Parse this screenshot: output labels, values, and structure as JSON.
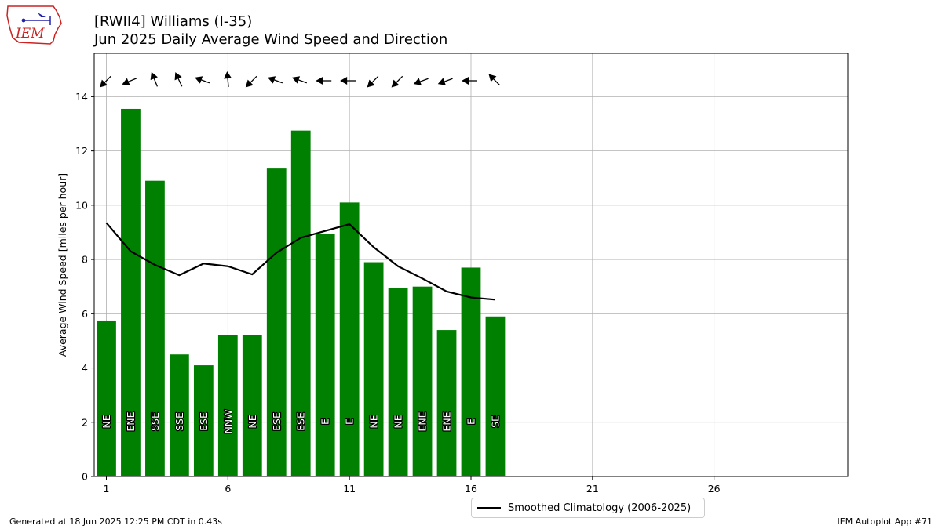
{
  "header": {
    "title_line1": "[RWII4] Williams (I-35)",
    "title_line2": "Jun 2025 Daily Average Wind Speed and Direction"
  },
  "logo": {
    "text": "IEM",
    "icon": "iowa-state-outline-icon",
    "color": "#cc2222"
  },
  "footer": {
    "left": "Generated at 18 Jun 2025 12:25 PM CDT in 0.43s",
    "right": "IEM Autoplot App #71"
  },
  "chart_data": {
    "type": "bar",
    "ylabel": "Average Wind Speed [miles per hour]",
    "xlabel": "",
    "xlim": [
      0.5,
      31.5
    ],
    "ylim": [
      0,
      15.6
    ],
    "xticks": [
      1,
      6,
      11,
      16,
      21,
      26
    ],
    "yticks": [
      0,
      2,
      4,
      6,
      8,
      10,
      12,
      14
    ],
    "grid": true,
    "legend_position": "bottom-center",
    "colors": {
      "bars": "#008000",
      "climatology": "#000000",
      "grid": "#b0b0b0"
    },
    "days": [
      1,
      2,
      3,
      4,
      5,
      6,
      7,
      8,
      9,
      10,
      11,
      12,
      13,
      14,
      15,
      16,
      17
    ],
    "speeds": [
      5.75,
      13.55,
      10.9,
      4.5,
      4.1,
      5.2,
      5.2,
      11.35,
      12.75,
      8.95,
      10.1,
      7.9,
      6.95,
      7.0,
      5.4,
      7.7,
      5.9
    ],
    "directions": [
      "NE",
      "ENE",
      "SSE",
      "SSE",
      "ESE",
      "NNW",
      "NE",
      "ESE",
      "ESE",
      "E",
      "E",
      "NE",
      "NE",
      "ENE",
      "ENE",
      "E",
      "SE"
    ],
    "arrow_angles_deg": [
      225,
      247,
      338,
      335,
      290,
      355,
      225,
      290,
      290,
      270,
      270,
      225,
      225,
      250,
      250,
      270,
      315
    ],
    "series": [
      {
        "name": "Smoothed Climatology (2006-2025)",
        "type": "line",
        "x": [
          1,
          2,
          3,
          4,
          5,
          6,
          7,
          8,
          9,
          10,
          11,
          12,
          13,
          14,
          15,
          16,
          17
        ],
        "values": [
          9.35,
          8.3,
          7.8,
          7.42,
          7.85,
          7.75,
          7.45,
          8.25,
          8.8,
          9.05,
          9.3,
          8.45,
          7.75,
          7.3,
          6.82,
          6.6,
          6.52
        ]
      }
    ]
  }
}
